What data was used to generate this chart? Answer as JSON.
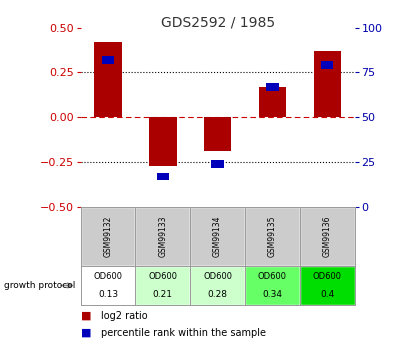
{
  "title": "GDS2592 / 1985",
  "samples": [
    "GSM99132",
    "GSM99133",
    "GSM99134",
    "GSM99135",
    "GSM99136"
  ],
  "log2_ratio": [
    0.42,
    -0.27,
    -0.19,
    0.17,
    0.37
  ],
  "percentile_rank_pct": [
    82,
    17,
    24,
    67,
    79
  ],
  "od600_values": [
    "0.13",
    "0.21",
    "0.28",
    "0.34",
    "0.4"
  ],
  "od600_colors": [
    "#ffffff",
    "#ccffcc",
    "#ccffcc",
    "#66ff66",
    "#00dd00"
  ],
  "ylim": [
    -0.5,
    0.5
  ],
  "yticks_left": [
    -0.5,
    -0.25,
    0.0,
    0.25,
    0.5
  ],
  "yticks_right_pct": [
    0,
    25,
    50,
    75,
    100
  ],
  "bar_color_red": "#aa0000",
  "bar_color_blue": "#0000bb",
  "zero_line_color": "#cc0000",
  "left_axis_color": "#cc0000",
  "right_axis_color": "#0000aa",
  "title_color": "#333333",
  "table_header_bg": "#cccccc",
  "bar_width": 0.5
}
